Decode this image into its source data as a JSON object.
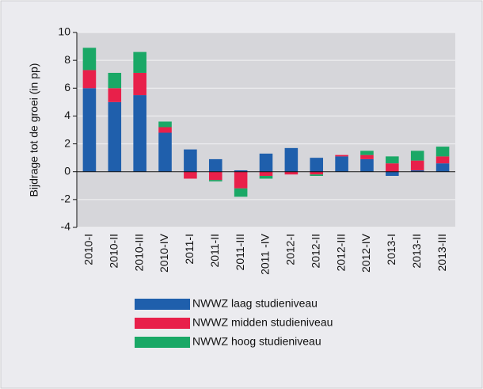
{
  "chart_data": {
    "type": "stacked-bar",
    "y_label": "Bijdrage tot de groei (in pp)",
    "categories": [
      "2010-I",
      "2010-II",
      "2010-III",
      "2010-IV",
      "2011-I",
      "2011-II",
      "2011-III",
      "2011 -IV",
      "2012-I",
      "2012-II",
      "2012-III",
      "2012-IV",
      "2013-I",
      "2013-II",
      "2013-III"
    ],
    "series": [
      {
        "name": "NWWZ laag studieniveau",
        "color": "#1f5fac",
        "values": [
          6.0,
          5.0,
          5.5,
          2.8,
          1.6,
          0.9,
          0.1,
          1.3,
          1.7,
          1.0,
          1.1,
          0.9,
          -0.3,
          0.1,
          0.6
        ]
      },
      {
        "name": "NWWZ midden studieniveau",
        "color": "#e8204a",
        "values": [
          1.3,
          1.0,
          1.6,
          0.4,
          -0.5,
          -0.6,
          -1.2,
          -0.3,
          -0.2,
          -0.2,
          0.1,
          0.3,
          0.6,
          0.7,
          0.5
        ]
      },
      {
        "name": "NWWZ hoog studieniveau",
        "color": "#1aa866",
        "values": [
          1.6,
          1.1,
          1.5,
          0.4,
          0,
          -0.1,
          -0.6,
          -0.2,
          0,
          -0.1,
          0,
          0.3,
          0.5,
          0.7,
          0.7
        ]
      }
    ],
    "ylim": [
      -4,
      10
    ],
    "yticks": [
      -4,
      -2,
      0,
      2,
      4,
      6,
      8,
      10
    ],
    "grid": true
  }
}
